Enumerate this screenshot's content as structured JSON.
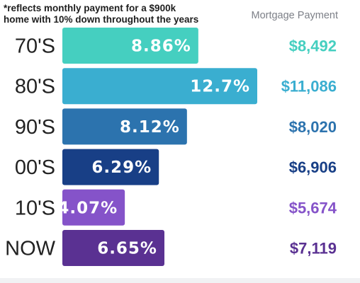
{
  "footnote": {
    "line1": "*reflects monthly payment for a $900k",
    "line2": "home with 10% down throughout the years"
  },
  "column_header": "Mortgage Payment",
  "chart_data": {
    "type": "bar",
    "orientation": "horizontal",
    "categories": [
      "70'S",
      "80'S",
      "90'S",
      "00'S",
      "10'S",
      "NOW"
    ],
    "values": [
      8.86,
      12.7,
      8.12,
      6.29,
      4.07,
      6.65
    ],
    "value_labels": [
      "8.86%",
      "12.7%",
      "8.12%",
      "6.29%",
      "4.07%",
      "6.65%"
    ],
    "payments": [
      "$8,492",
      "$11,086",
      "$8,020",
      "$6,906",
      "$5,674",
      "$7,119"
    ],
    "colors": [
      "#45cfc0",
      "#3aaed0",
      "#2c73ae",
      "#183f86",
      "#8553c9",
      "#5a3192"
    ],
    "xlim": [
      0,
      12.7
    ],
    "grid": false,
    "legend": "none"
  }
}
